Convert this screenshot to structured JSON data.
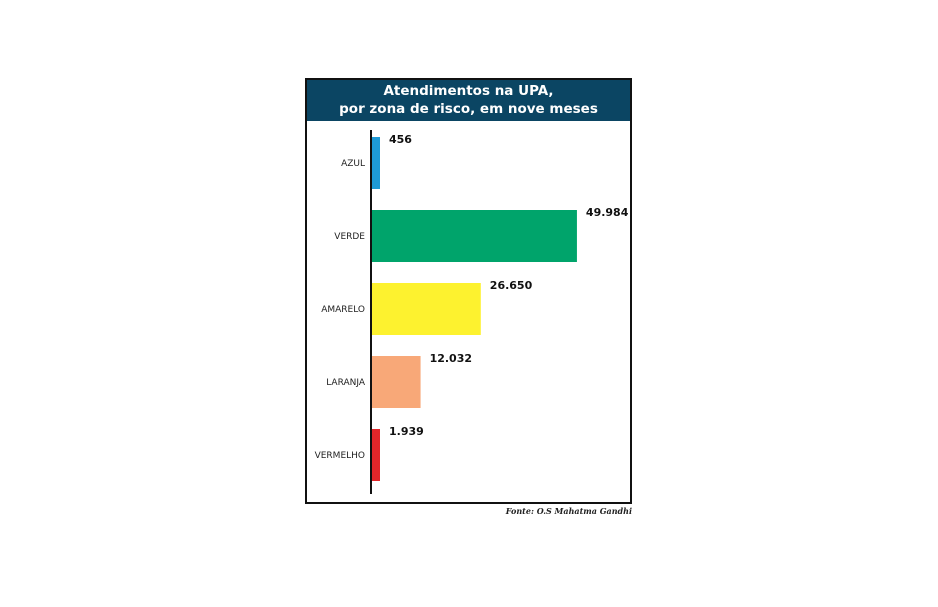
{
  "chart_data": {
    "type": "bar",
    "orientation": "horizontal",
    "title_lines": [
      "Atendimentos na UPA,",
      "por zona de risco, em nove meses"
    ],
    "categories": [
      "AZUL",
      "VERDE",
      "AMARELO",
      "LARANJA",
      "VERMELHO"
    ],
    "values": [
      456,
      49984,
      26650,
      12032,
      1939
    ],
    "value_labels": [
      "456",
      "49.984",
      "26.650",
      "12.032",
      "1.939"
    ],
    "colors": [
      "#1e9ad6",
      "#00a46b",
      "#fdf22f",
      "#f8a878",
      "#e3262a"
    ],
    "xlim": [
      0,
      50000
    ],
    "grid": false,
    "legend": "none",
    "source": "Fonte: O.S Mahatma Gandhi"
  },
  "colors": {
    "header_background": "#0b4563",
    "header_text": "#ffffff",
    "axis": "#111111"
  }
}
